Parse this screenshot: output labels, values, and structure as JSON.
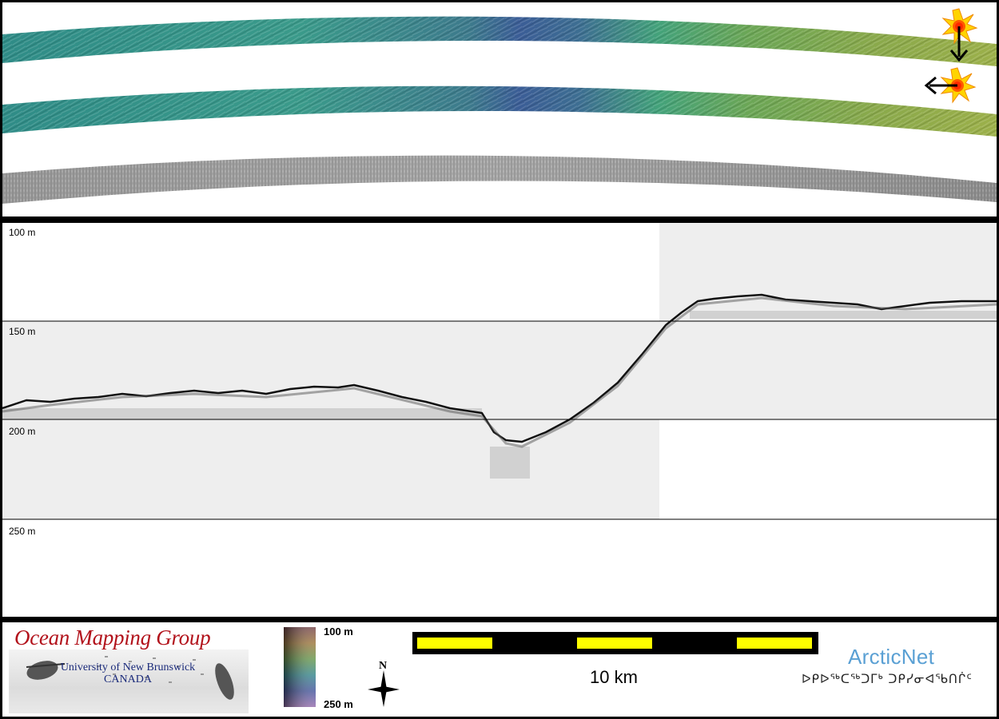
{
  "top_panel": {
    "swaths": [
      {
        "name": "shaded-relief-swath-1",
        "sun_icon": "sun-icon",
        "light_direction": "down-arrow-icon"
      },
      {
        "name": "shaded-relief-swath-2",
        "sun_icon": "sun-icon",
        "light_direction": "left-arrow-icon"
      },
      {
        "name": "backscatter-swath"
      }
    ]
  },
  "profile": {
    "depth_labels": [
      "100 m",
      "150 m",
      "200 m",
      "250 m"
    ]
  },
  "footer": {
    "omg_title": "Ocean Mapping Group",
    "omg_university": "University of New Brunswick",
    "omg_country": "CANADA",
    "colorbar_top": "100 m",
    "colorbar_bottom": "250 m",
    "north_label": "N",
    "scale_label": "10 km",
    "arcticnet_name": "ArcticNet",
    "arcticnet_syllabics": "ᐅᑭᐅᖅᑕᖅᑐᒥᒃ ᑐᑭᓯᓂᐊᖃᑎᒌᑦ"
  },
  "colors": {
    "background": "#000000",
    "panel": "#ffffff",
    "profile_fill": "#eeeeee",
    "scale_yellow": "#ffff00",
    "omg_red": "#b2121b",
    "arcticnet_blue": "#5aa0d4"
  }
}
